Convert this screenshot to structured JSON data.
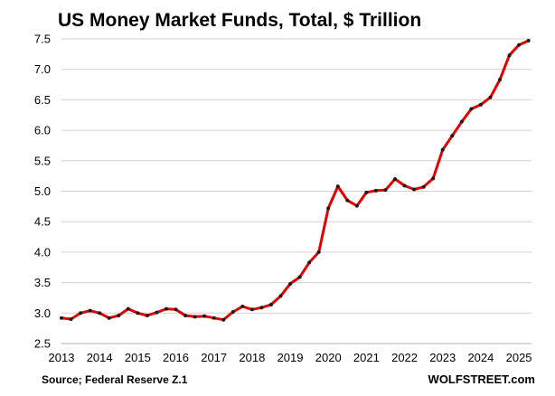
{
  "chart_data": {
    "type": "line",
    "title": "US Money Market Funds, Total, $ Trillion",
    "xlabel": "",
    "ylabel": "",
    "xlim": [
      2013,
      2025.33
    ],
    "ylim": [
      2.5,
      7.5
    ],
    "y_ticks": [
      "2.5",
      "3.0",
      "3.5",
      "4.0",
      "4.5",
      "5.0",
      "5.5",
      "6.0",
      "6.5",
      "7.0",
      "7.5"
    ],
    "x_ticks": [
      "2013",
      "2014",
      "2015",
      "2016",
      "2017",
      "2018",
      "2019",
      "2020",
      "2021",
      "2022",
      "2023",
      "2024",
      "2025"
    ],
    "grid": "horizontal",
    "line_color": "#e30000",
    "marker_color": "#1a1a1a",
    "series": [
      {
        "x": [
          2013.0,
          2013.25,
          2013.5,
          2013.75,
          2014.0,
          2014.25,
          2014.5,
          2014.75,
          2015.0,
          2015.25,
          2015.5,
          2015.75,
          2016.0,
          2016.25,
          2016.5,
          2016.75,
          2017.0,
          2017.25,
          2017.5,
          2017.75,
          2018.0,
          2018.25,
          2018.5,
          2018.75,
          2019.0,
          2019.25,
          2019.5,
          2019.75,
          2020.0,
          2020.25,
          2020.5,
          2020.75,
          2021.0,
          2021.25,
          2021.5,
          2021.75,
          2022.0,
          2022.25,
          2022.5,
          2022.75,
          2023.0,
          2023.25,
          2023.5,
          2023.75,
          2024.0,
          2024.25,
          2024.5,
          2024.75,
          2025.0,
          2025.25
        ],
        "values": [
          2.92,
          2.9,
          3.0,
          3.04,
          3.0,
          2.92,
          2.96,
          3.07,
          3.0,
          2.96,
          3.01,
          3.07,
          3.06,
          2.96,
          2.94,
          2.95,
          2.92,
          2.89,
          3.02,
          3.11,
          3.06,
          3.09,
          3.14,
          3.28,
          3.48,
          3.59,
          3.83,
          4.0,
          4.72,
          5.08,
          4.85,
          4.76,
          4.98,
          5.01,
          5.02,
          5.2,
          5.09,
          5.03,
          5.07,
          5.21,
          5.68,
          5.91,
          6.14,
          6.35,
          6.42,
          6.54,
          6.83,
          7.23,
          7.4,
          7.47
        ]
      }
    ]
  },
  "footer": {
    "source": "Source; Federal Reserve Z.1",
    "brand": "WOLFSTREET.com"
  }
}
